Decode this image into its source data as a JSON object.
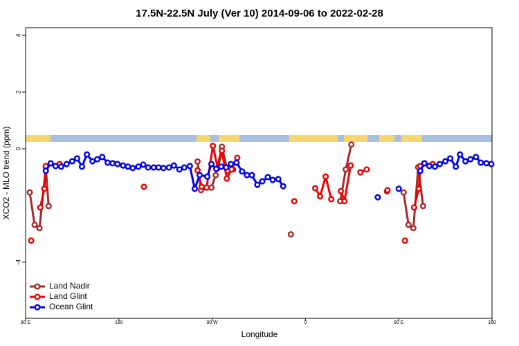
{
  "chart_data": {
    "type": "line",
    "title": "17.5N-22.5N July (Ver 10)   2014-09-06 to 2022-02-28",
    "xlabel": "Longitude",
    "ylabel": "XCO2 - MLO trend (ppm)",
    "xlim": [
      90,
      540
    ],
    "ylim": [
      -5.98,
      4.27
    ],
    "xticks": [
      {
        "value": 90,
        "label": "90 E"
      },
      180,
      {
        "value": 270,
        "label": "90 W"
      },
      {
        "value": 360,
        "label": "0"
      },
      {
        "value": 450,
        "label": "90 E"
      },
      {
        "value": 540,
        "label": "180"
      }
    ],
    "yticks": [
      -4,
      0,
      2,
      4
    ],
    "legend": "bottom-left",
    "series": [
      {
        "name": "Land Nadir",
        "color": "#a52a2a",
        "x": [
          94.0,
          98.7,
          103.4,
          109.5,
          112.2,
          null,
          255.9,
          259.2,
          269.3,
          273.4,
          279.4,
          284.8,
          290.2,
          null,
          345.9,
          null,
          393.6,
          398.9,
          404.3,
          null,
          438.6,
          null,
          454.7,
          459.4,
          464.1,
          468.8,
          473.5
        ],
        "values": [
          -1.54,
          -2.68,
          -2.8,
          -0.65,
          -2.02,
          null,
          -0.45,
          -1.46,
          -1.37,
          -0.93,
          0.07,
          -0.78,
          -0.73,
          null,
          -3.02,
          null,
          -1.85,
          -0.73,
          0.15,
          null,
          -1.5,
          null,
          -1.54,
          -2.68,
          -2.8,
          -0.65,
          -2.02
        ]
      },
      {
        "name": "Land Glint",
        "color": "#ee0000",
        "x": [
          95.4,
          null,
          104.1,
          108.1,
          109.5,
          122.9,
          null,
          204.2,
          null,
          255.9,
          259.9,
          264.6,
          270.7,
          275.4,
          279.4,
          284.1,
          288.8,
          294.2,
          null,
          349.2,
          null,
          369.4,
          374.1,
          379.5,
          384.9,
          null,
          394.2,
          397.6,
          403.6,
          null,
          413.0,
          419.1,
          null,
          439.2,
          null,
          456.0,
          null,
          464.8,
          469.4,
          470.8,
          482.9
        ],
        "values": [
          -3.24,
          null,
          -2.07,
          -1.41,
          -0.61,
          -0.54,
          null,
          -1.34,
          null,
          -0.76,
          -1.34,
          -1.37,
          0.1,
          -0.68,
          -0.07,
          -1.05,
          -0.73,
          -0.32,
          null,
          -1.85,
          null,
          -1.39,
          -1.68,
          -0.98,
          -1.78,
          null,
          -1.49,
          -1.85,
          -0.59,
          null,
          -0.83,
          -0.73,
          null,
          -1.46,
          null,
          -3.24,
          null,
          -2.07,
          -1.41,
          -0.61,
          -0.54
        ]
      },
      {
        "name": "Ocean Glint",
        "color": "#0000ee",
        "x": [
          109.5,
          114.2,
          118.9,
          124.3,
          129.6,
          135.0,
          139.7,
          144.4,
          149.1,
          154.5,
          159.2,
          163.9,
          169.2,
          173.9,
          178.7,
          184.0,
          188.7,
          193.4,
          198.8,
          203.5,
          208.2,
          213.6,
          218.3,
          223.0,
          228.3,
          233.1,
          238.4,
          243.1,
          248.5,
          253.2,
          257.9,
          265.3,
          269.3,
          274.0,
          278.7,
          283.4,
          288.1,
          293.5,
          298.9,
          303.6,
          308.3,
          313.6,
          318.3,
          323.7,
          328.4,
          333.8,
          338.5,
          null,
          429.8,
          null,
          450.0,
          null,
          470.8,
          474.8,
          479.5,
          484.9,
          489.6,
          495.0,
          499.7,
          505.1,
          509.1,
          514.4,
          519.2,
          524.5,
          529.2,
          534.6,
          539.3
        ],
        "values": [
          -0.78,
          -0.51,
          -0.61,
          -0.63,
          -0.54,
          -0.44,
          -0.34,
          -0.63,
          -0.2,
          -0.44,
          -0.37,
          -0.29,
          -0.49,
          -0.51,
          -0.54,
          -0.59,
          -0.63,
          -0.68,
          -0.63,
          -0.56,
          -0.66,
          -0.66,
          -0.66,
          -0.68,
          -0.66,
          -0.59,
          -0.73,
          -0.66,
          -0.61,
          -1.41,
          -0.93,
          -0.98,
          -0.54,
          -0.71,
          -0.63,
          -0.66,
          -0.54,
          -0.49,
          -0.8,
          -0.93,
          -0.93,
          -1.27,
          -1.15,
          -1.0,
          -1.1,
          -1.07,
          -1.32,
          null,
          -1.71,
          null,
          -1.41,
          null,
          -0.78,
          -0.51,
          -0.61,
          -0.63,
          -0.54,
          -0.44,
          -0.34,
          -0.63,
          -0.2,
          -0.44,
          -0.37,
          -0.29,
          -0.49,
          -0.51,
          -0.54
        ]
      }
    ]
  }
}
